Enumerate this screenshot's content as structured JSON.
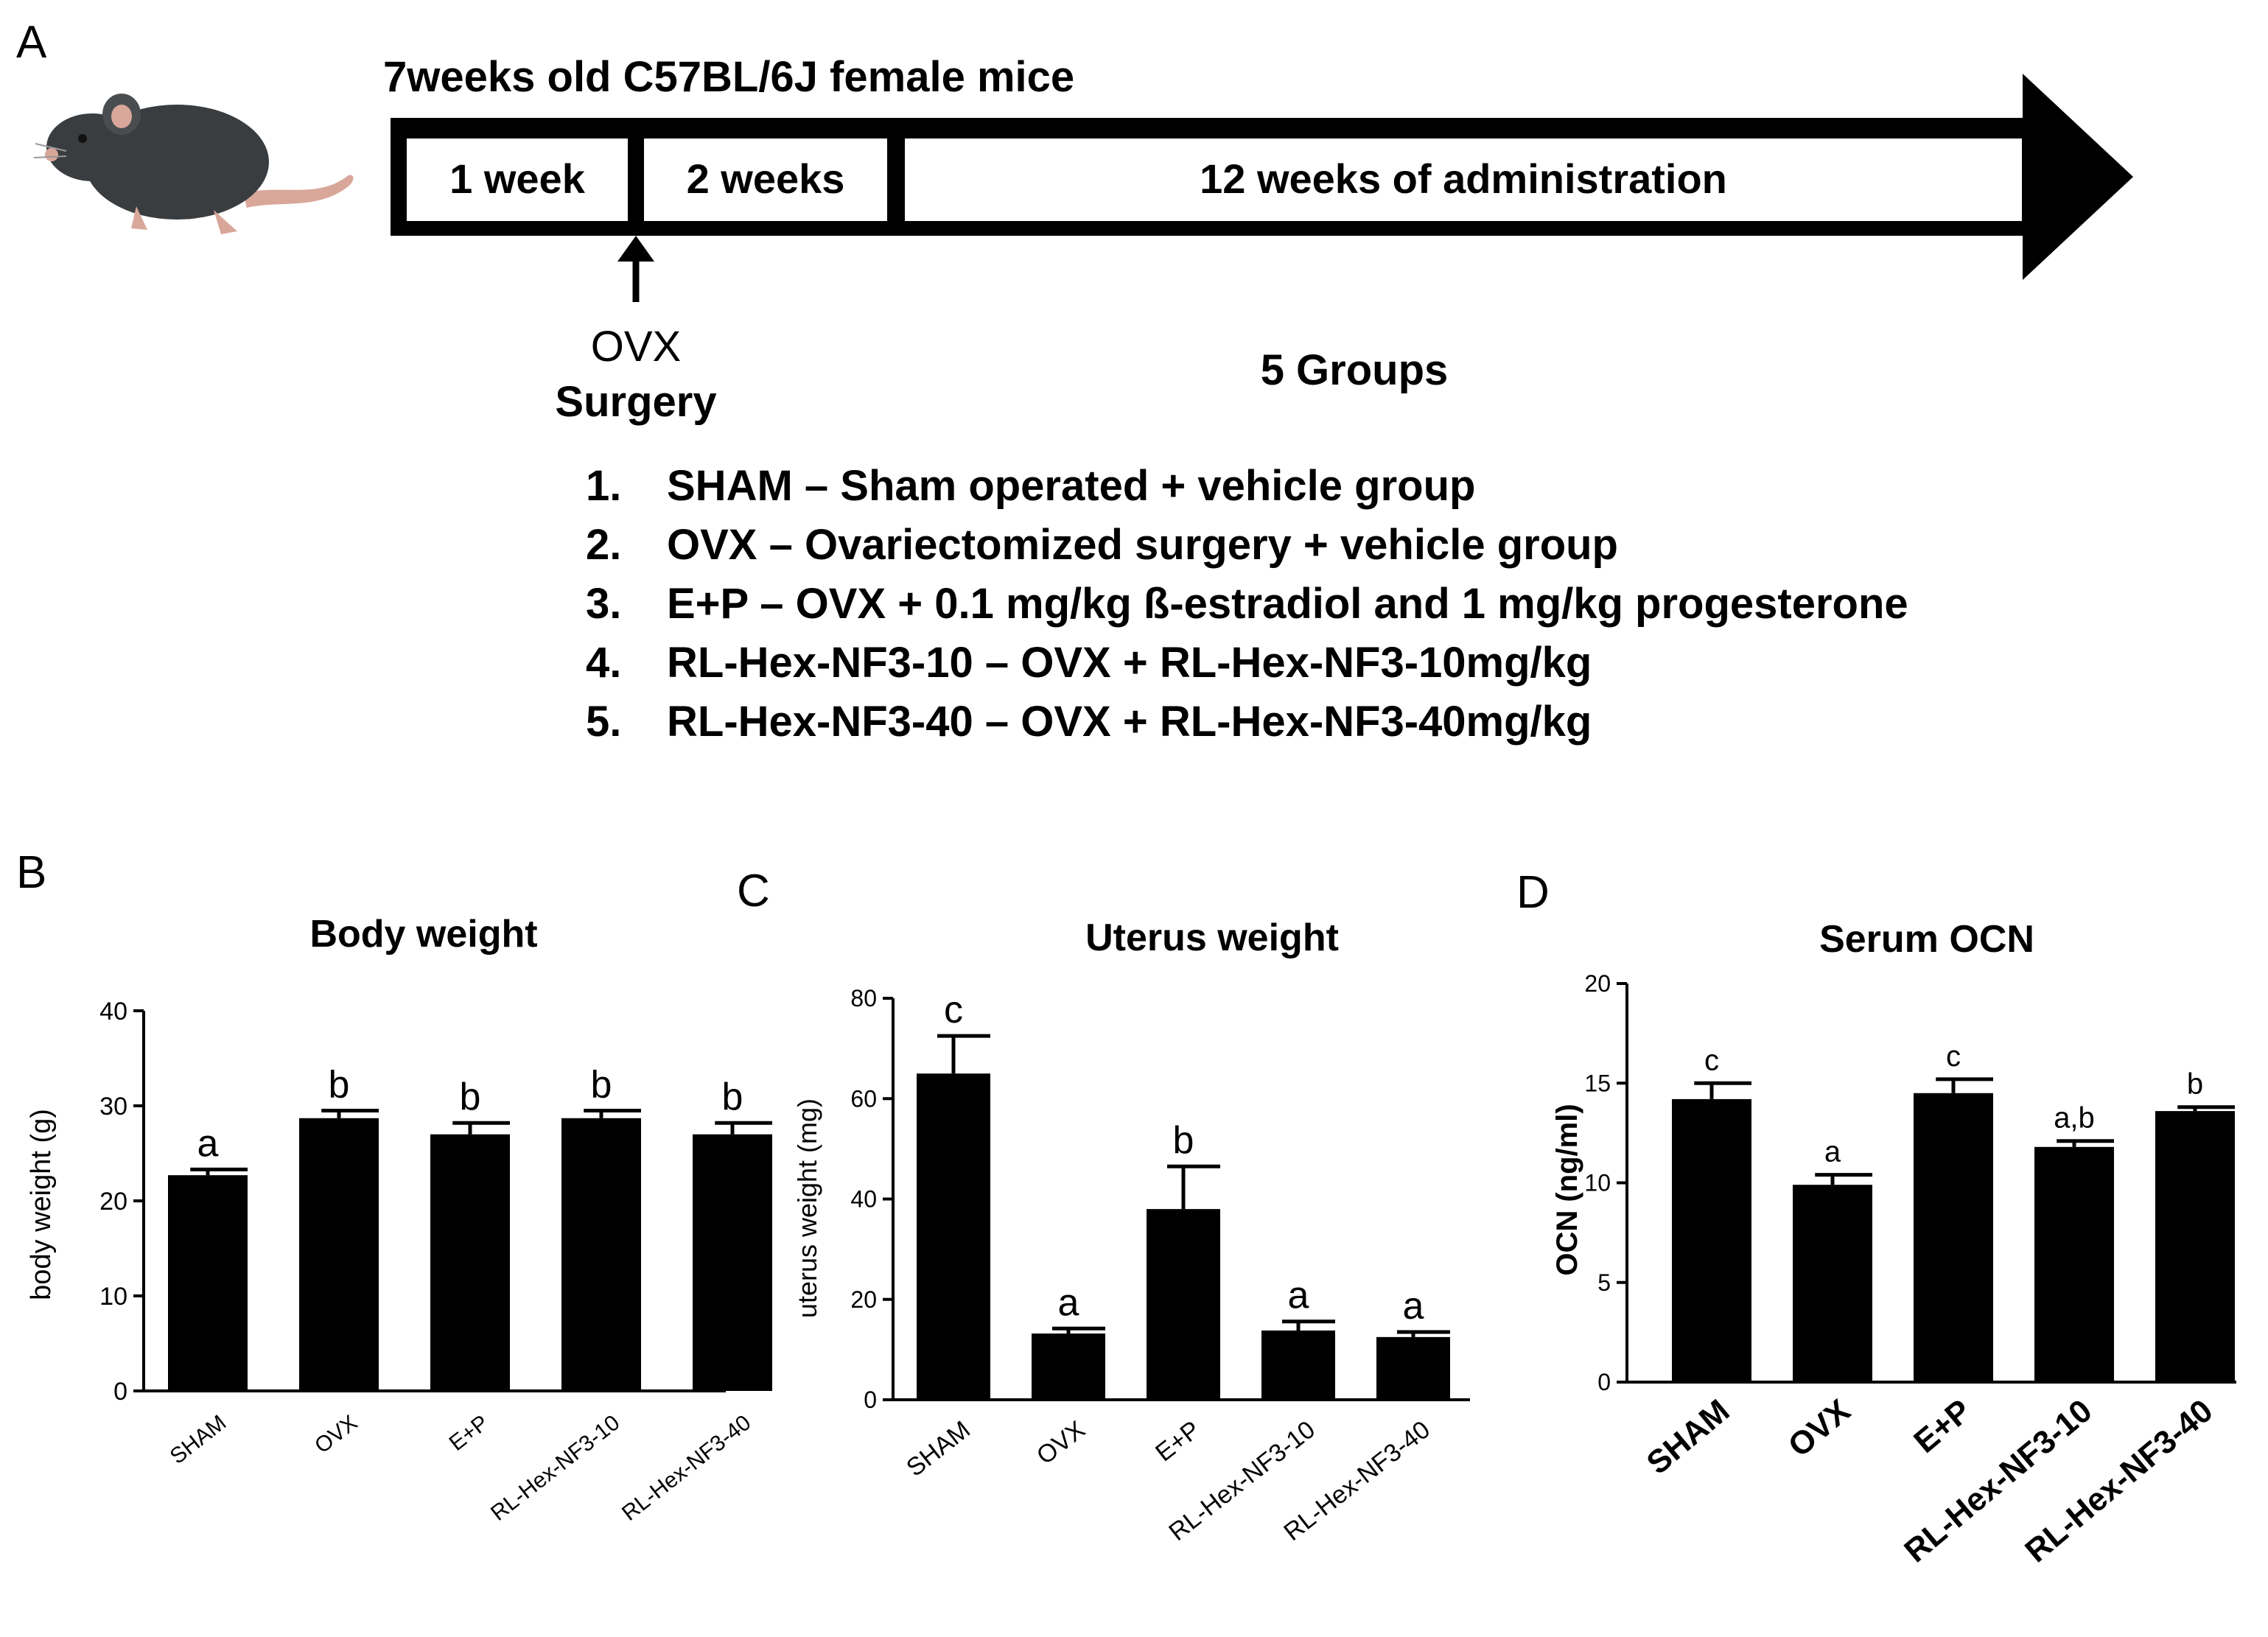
{
  "panelA": {
    "label": "A",
    "title": "7weeks old C57BL/6J female mice",
    "phases": [
      "1 week",
      "2 weeks",
      "12 weeks of administration"
    ],
    "surgery_line1": "OVX",
    "surgery_line2": "Surgery",
    "groups_title": "5 Groups",
    "groups": [
      {
        "num": "1.",
        "text": "SHAM – Sham operated + vehicle group"
      },
      {
        "num": "2.",
        "text": "OVX – Ovariectomized surgery + vehicle group"
      },
      {
        "num": "3.",
        "text": "E+P – OVX + 0.1 mg/kg ß-estradiol and 1 mg/kg progesterone"
      },
      {
        "num": "4.",
        "text": "RL-Hex-NF3-10 – OVX + RL-Hex-NF3-10mg/kg"
      },
      {
        "num": "5.",
        "text": "RL-Hex-NF3-40 – OVX + RL-Hex-NF3-40mg/kg"
      }
    ]
  },
  "chart_data": [
    {
      "label": "B",
      "type": "bar",
      "title": "Body weight",
      "xlabel": "",
      "ylabel": "body weight  (g)",
      "ylim": [
        0,
        40
      ],
      "yticks": [
        0,
        10,
        20,
        30,
        40
      ],
      "categories": [
        "SHAM",
        "OVX",
        "E+P",
        "RL-Hex-NF3-10",
        "RL-Hex-NF3-40"
      ],
      "values": [
        22.7,
        28.7,
        27.0,
        28.7,
        27.0
      ],
      "errors": [
        0.6,
        0.8,
        1.2,
        0.8,
        1.2
      ],
      "letters": [
        "a",
        "b",
        "b",
        "b",
        "b"
      ]
    },
    {
      "label": "C",
      "type": "bar",
      "title": "Uterus weight",
      "xlabel": "",
      "ylabel": "uterus weight  (mg)",
      "ylim": [
        0,
        80
      ],
      "yticks": [
        0,
        20,
        40,
        60,
        80
      ],
      "categories": [
        "SHAM",
        "OVX",
        "E+P",
        "RL-Hex-NF3-10",
        "RL-Hex-NF3-40"
      ],
      "values": [
        65,
        13.2,
        38,
        13.8,
        12.5
      ],
      "errors": [
        7.5,
        1.0,
        8.5,
        1.8,
        1.0
      ],
      "letters": [
        "c",
        "a",
        "b",
        "a",
        "a"
      ]
    },
    {
      "label": "D",
      "type": "bar",
      "title": "Serum OCN",
      "xlabel": "",
      "ylabel": "OCN (ng/ml)",
      "ylim": [
        0,
        20
      ],
      "yticks": [
        0,
        5,
        10,
        15,
        20
      ],
      "categories": [
        "SHAM",
        "OVX",
        "E+P",
        "RL-Hex-NF3-10",
        "RL-Hex-NF3-40"
      ],
      "values": [
        14.2,
        9.9,
        14.5,
        11.8,
        13.6
      ],
      "errors": [
        0.8,
        0.5,
        0.7,
        0.3,
        0.2
      ],
      "letters": [
        "c",
        "a",
        "c",
        "a,b",
        "b"
      ]
    }
  ],
  "colors": {
    "bar": "#000000",
    "text": "#000000",
    "mouse_body": "#3a3d40",
    "mouse_pink": "#d9a79a"
  }
}
